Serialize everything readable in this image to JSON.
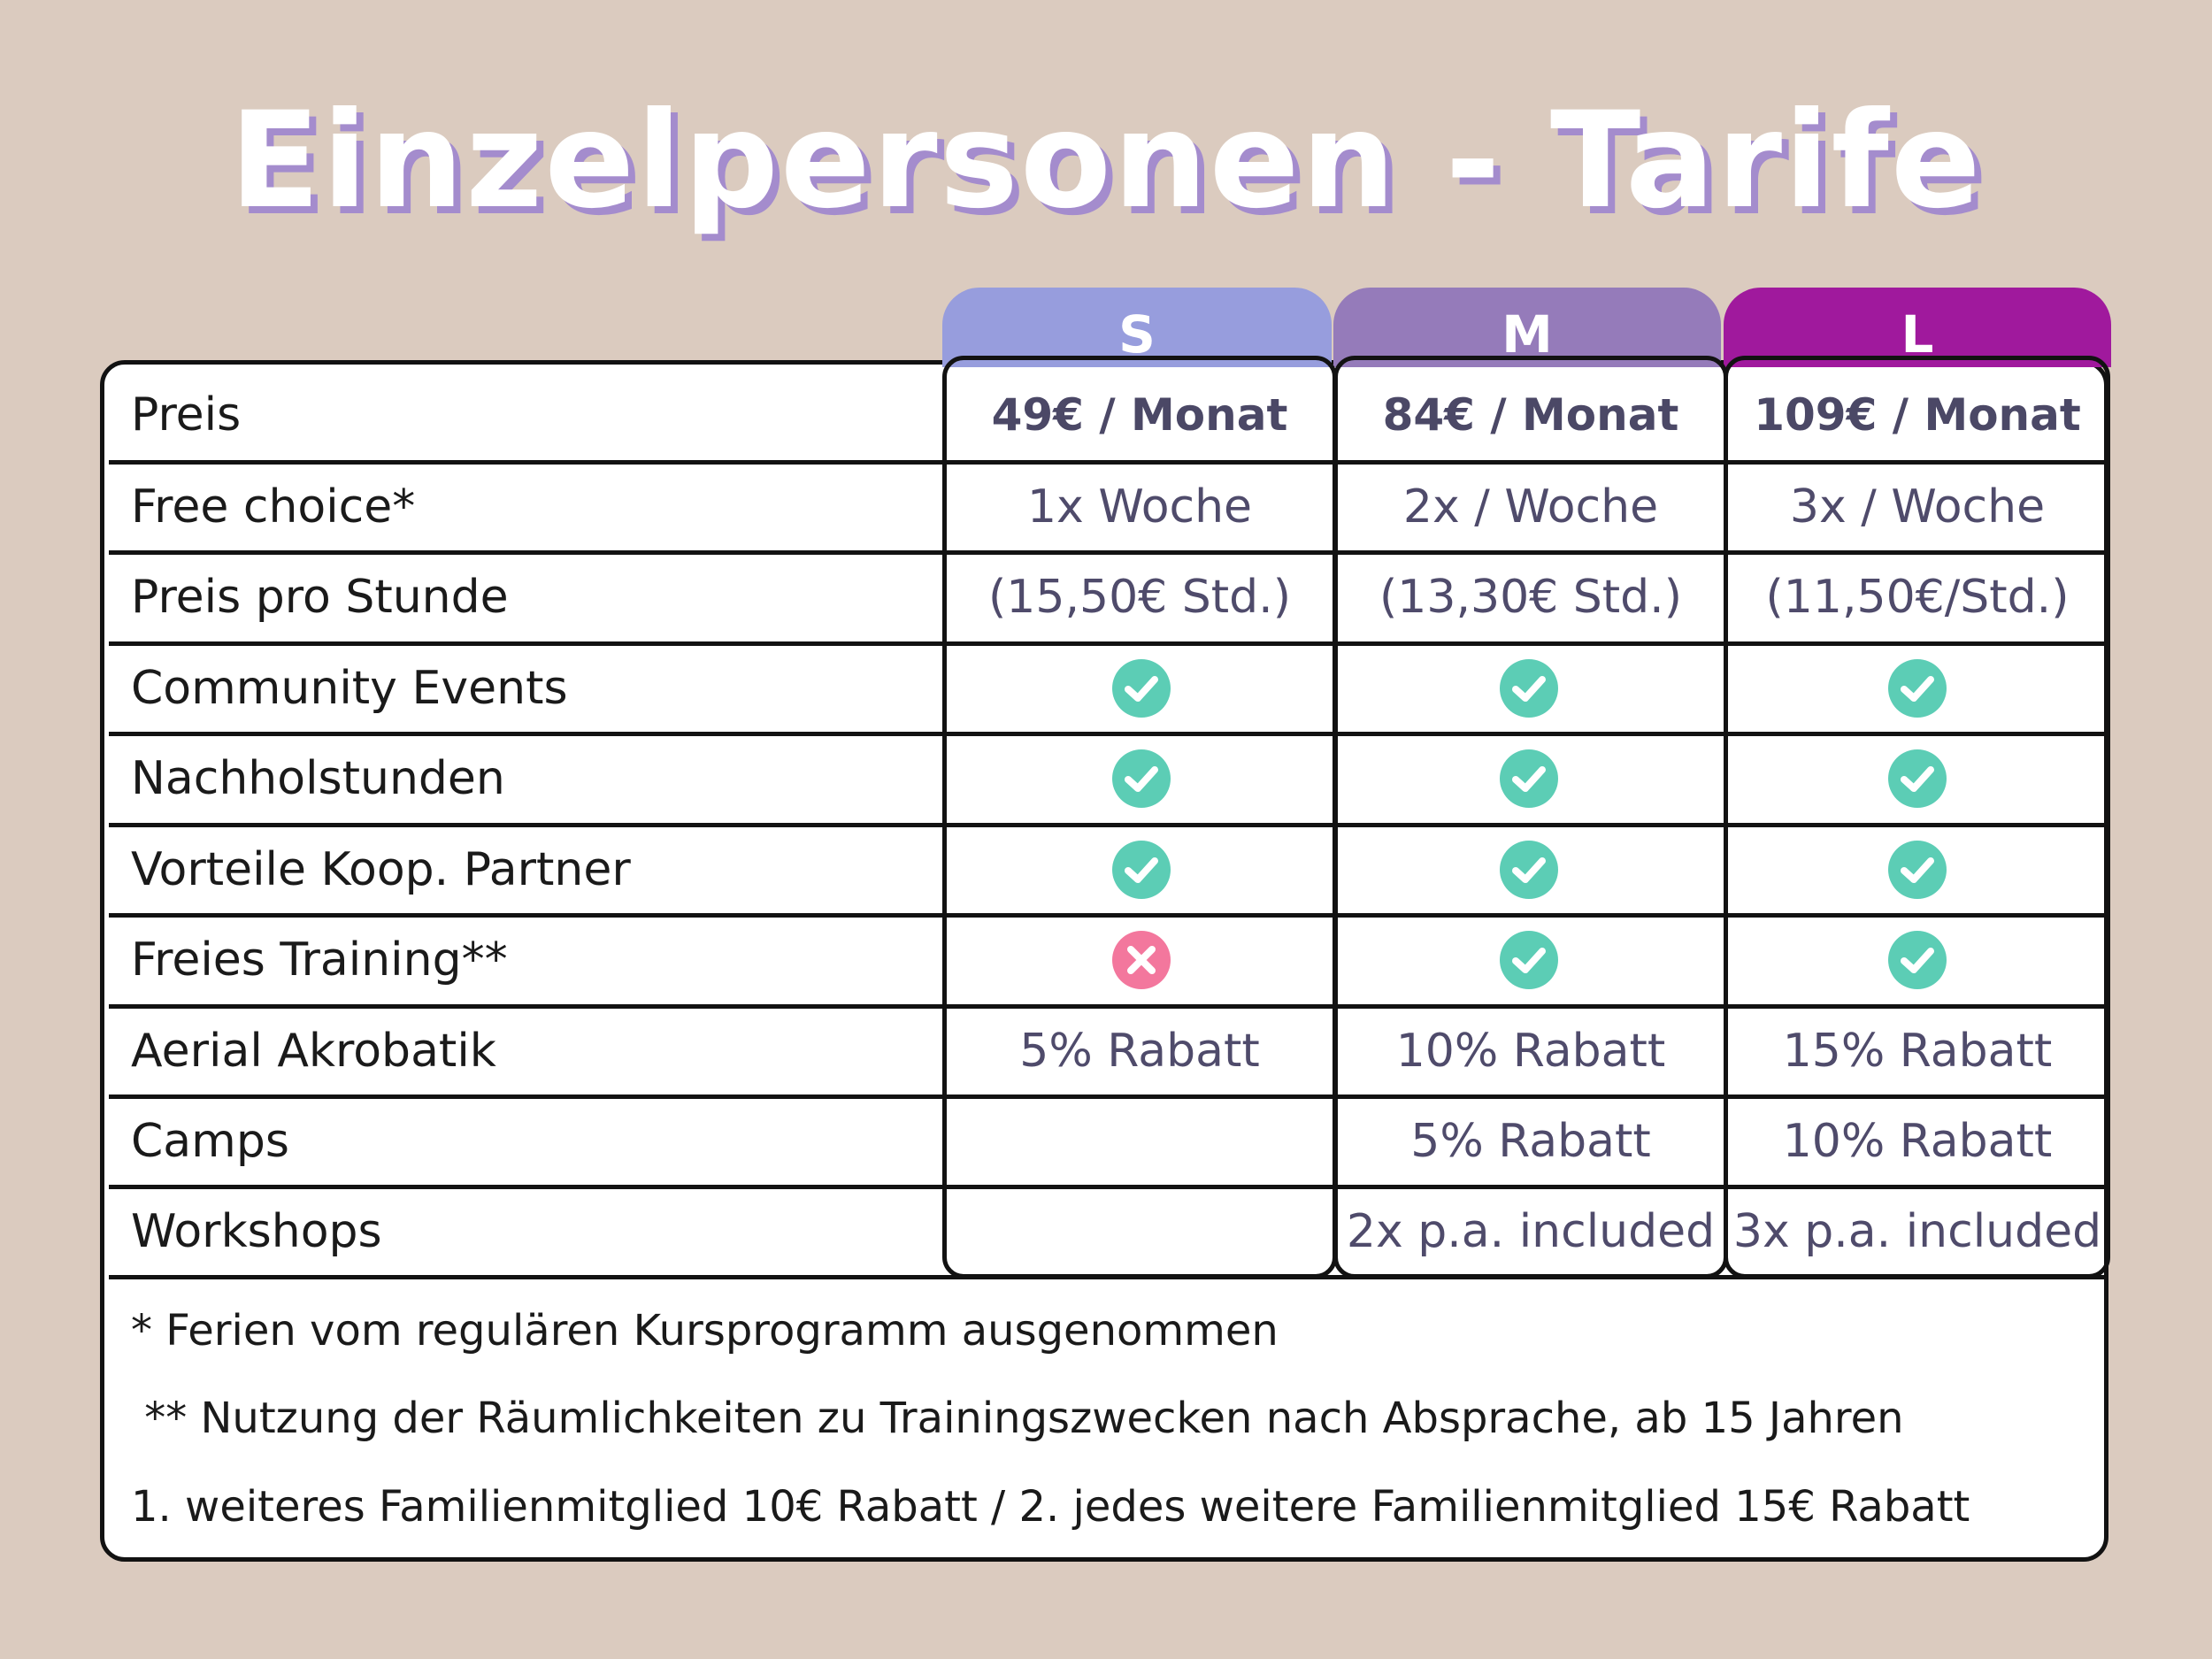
{
  "title": "Einzelpersonen - Tarife",
  "colors": {
    "tab_s": "#979ddd",
    "tab_m": "#957bba",
    "tab_l": "#a0199d",
    "check": "#5ccdb5",
    "cross": "#f3779d"
  },
  "tiers": [
    {
      "label": "S"
    },
    {
      "label": "M"
    },
    {
      "label": "L"
    }
  ],
  "rows": [
    {
      "label": "Preis",
      "s": "49€ / Monat",
      "m": "84€ / Monat",
      "l": "109€ / Monat"
    },
    {
      "label": "Free choice*",
      "s": "1x Woche",
      "m": "2x / Woche",
      "l": "3x / Woche"
    },
    {
      "label": "Preis pro Stunde",
      "s": "(15,50€ Std.)",
      "m": "(13,30€ Std.)",
      "l": "(11,50€/Std.)"
    },
    {
      "label": "Community Events",
      "s_icon": "check-icon",
      "m_icon": "check-icon",
      "l_icon": "check-icon"
    },
    {
      "label": "Nachholstunden",
      "s_icon": "check-icon",
      "m_icon": "check-icon",
      "l_icon": "check-icon"
    },
    {
      "label": "Vorteile Koop. Partner",
      "s_icon": "check-icon",
      "m_icon": "check-icon",
      "l_icon": "check-icon"
    },
    {
      "label": "Freies Training**",
      "s_icon": "cross-icon",
      "m_icon": "check-icon",
      "l_icon": "check-icon"
    },
    {
      "label": "Aerial Akrobatik",
      "s": "5% Rabatt",
      "m": "10% Rabatt",
      "l": "15% Rabatt"
    },
    {
      "label": "Camps",
      "s": "",
      "m": "5% Rabatt",
      "l": "10% Rabatt"
    },
    {
      "label": "Workshops",
      "s": "",
      "m": "2x p.a. included",
      "l": "3x p.a. included"
    }
  ],
  "notes": [
    "* Ferien vom regulären Kursprogramm ausgenommen",
    " ** Nutzung der Räumlichkeiten zu Trainingszwecken nach Absprache, ab 15 Jahren",
    "1. weiteres Familienmitglied 10€ Rabatt / 2. jedes weitere Familienmitglied 15€ Rabatt"
  ]
}
